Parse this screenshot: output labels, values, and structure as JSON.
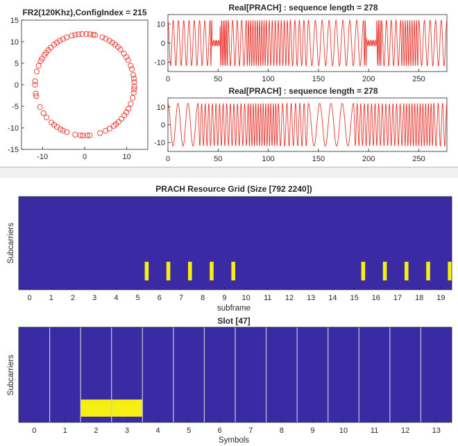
{
  "colors": {
    "marker": "#e8332b",
    "line": "#e8332b",
    "grid_bg": "#3a2aa4",
    "grid_active": "#f5f011",
    "slot_lines": "#c8c8d8",
    "separator_bg": "#f0f0f0",
    "separator_line": "#b9b9b9",
    "axis": "#262626"
  },
  "chart_data": [
    {
      "type": "scatter",
      "title": "FR2(120Khz),ConfigIndex = 215",
      "marker": "circle-open",
      "xlim": [
        -15,
        15
      ],
      "ylim": [
        -15,
        15
      ],
      "xticks": [
        "-10",
        "0",
        "10"
      ],
      "yticks": [
        "15",
        "10",
        "5",
        "0",
        "-5",
        "-10",
        "-15"
      ],
      "radius": 11.8,
      "angles_deg": [
        3,
        7,
        11,
        18,
        22,
        29,
        33,
        38,
        44,
        48,
        52,
        56,
        60,
        65,
        69,
        78,
        80,
        84,
        88,
        93,
        97,
        101,
        105,
        111,
        116,
        120,
        124,
        128,
        133,
        137,
        141,
        144,
        149,
        152,
        158,
        165,
        176,
        180,
        190,
        193,
        206,
        214,
        220,
        228,
        232,
        236,
        241,
        244,
        249,
        259,
        265,
        268,
        273,
        276,
        288,
        295,
        300,
        306,
        309,
        313,
        318,
        323,
        327,
        332,
        338,
        345,
        351,
        355,
        358
      ]
    },
    {
      "type": "line",
      "title": "Real[PRACH] : sequence length = 278",
      "xlim": [
        0,
        278
      ],
      "ylim": [
        -15,
        15
      ],
      "xticks": [
        "0",
        "50",
        "100",
        "150",
        "200",
        "250"
      ],
      "yticks": [
        "10",
        "0",
        "-10"
      ],
      "amplitude": 12,
      "segments": [
        {
          "x_start": 0,
          "x_end": 42,
          "cycles": 8
        },
        {
          "x_start": 42,
          "x_end": 60,
          "cycles": 11
        },
        {
          "x_start": 60,
          "x_end": 78,
          "cycles": 4
        },
        {
          "x_start": 78,
          "x_end": 98,
          "cycles": 9
        },
        {
          "x_start": 98,
          "x_end": 122,
          "cycles": 8
        },
        {
          "x_start": 122,
          "x_end": 140,
          "cycles": 4
        },
        {
          "x_start": 140,
          "x_end": 195,
          "cycles": 8
        },
        {
          "x_start": 195,
          "x_end": 213,
          "cycles": 11
        },
        {
          "x_start": 213,
          "x_end": 232,
          "cycles": 4
        },
        {
          "x_start": 232,
          "x_end": 250,
          "cycles": 8
        },
        {
          "x_start": 250,
          "x_end": 278,
          "cycles": 5
        }
      ],
      "quiet_regions": [
        {
          "x_start": 44,
          "x_end": 52,
          "amplitude": 1.5
        },
        {
          "x_start": 198,
          "x_end": 208,
          "amplitude": 1.5
        }
      ]
    },
    {
      "type": "line",
      "title": "Real[PRACH] : sequence length = 278",
      "xlim": [
        0,
        278
      ],
      "ylim": [
        -15,
        15
      ],
      "xticks": [
        "0",
        "50",
        "100",
        "150",
        "200",
        "250"
      ],
      "yticks": [
        "10",
        "0",
        "-10"
      ],
      "amplitude": 12,
      "segments": [
        {
          "x_start": 0,
          "x_end": 30,
          "cycles": 3
        },
        {
          "x_start": 30,
          "x_end": 80,
          "cycles": 14
        },
        {
          "x_start": 80,
          "x_end": 110,
          "cycles": 12
        },
        {
          "x_start": 110,
          "x_end": 140,
          "cycles": 7
        },
        {
          "x_start": 140,
          "x_end": 185,
          "cycles": 4
        },
        {
          "x_start": 185,
          "x_end": 235,
          "cycles": 14
        },
        {
          "x_start": 235,
          "x_end": 265,
          "cycles": 11
        },
        {
          "x_start": 265,
          "x_end": 278,
          "cycles": 3
        }
      ],
      "quiet_regions": []
    },
    {
      "type": "heatmap",
      "title": "PRACH Resource Grid (Size [792 2240])",
      "xlabel": "subframe",
      "ylabel": "Subcarriers",
      "xlim": [
        -0.5,
        19.5
      ],
      "xticks": [
        "0",
        "1",
        "2",
        "3",
        "4",
        "5",
        "6",
        "7",
        "8",
        "9",
        "10",
        "11",
        "12",
        "13",
        "14",
        "15",
        "16",
        "17",
        "18",
        "19"
      ],
      "active_blocks": [
        {
          "x_start": 5.32,
          "x_end": 5.5
        },
        {
          "x_start": 6.32,
          "x_end": 6.5
        },
        {
          "x_start": 7.32,
          "x_end": 7.5
        },
        {
          "x_start": 8.32,
          "x_end": 8.5
        },
        {
          "x_start": 9.32,
          "x_end": 9.5
        },
        {
          "x_start": 15.32,
          "x_end": 15.5
        },
        {
          "x_start": 16.32,
          "x_end": 16.5
        },
        {
          "x_start": 17.32,
          "x_end": 17.5
        },
        {
          "x_start": 18.32,
          "x_end": 18.5
        },
        {
          "x_start": 19.32,
          "x_end": 19.5
        }
      ],
      "active_subcarrier_fraction": [
        0.7,
        0.9
      ]
    },
    {
      "type": "heatmap",
      "title": "Slot [47]",
      "xlabel": "Symbols",
      "ylabel": "Subcarriers",
      "xlim": [
        -0.5,
        13.5
      ],
      "xticks": [
        "0",
        "1",
        "2",
        "3",
        "4",
        "5",
        "6",
        "7",
        "8",
        "9",
        "10",
        "11",
        "12",
        "13"
      ],
      "symbol_boundaries": [
        0.5,
        1.5,
        2.5,
        3.5,
        4.5,
        5.5,
        6.5,
        7.5,
        8.5,
        9.5,
        10.5,
        11.5,
        12.5
      ],
      "active_blocks": [
        {
          "x_start": 1.5,
          "x_end": 3.5
        }
      ],
      "active_subcarrier_fraction": [
        0.76,
        0.94
      ]
    }
  ]
}
